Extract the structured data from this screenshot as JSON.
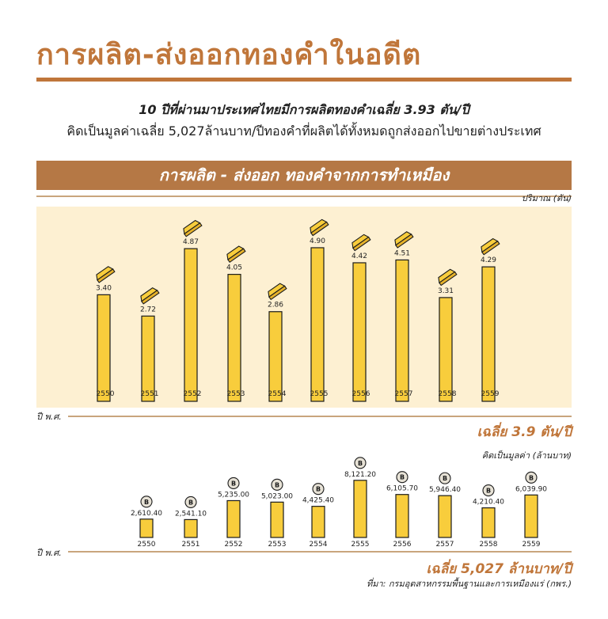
{
  "header": {
    "title": "การผลิต-ส่งออกทองคำในอดีต",
    "subtitle_line1": "10 ปีที่ผ่านมาประเทศไทยมีการผลิตทองคำเฉลี่ย 3.93 ตัน/ปี",
    "subtitle_line2": "คิดเป็นมูลค่าเฉลี่ย 5,027ล้านบาท/ปีทองคำที่ผลิตได้ทั้งหมดถูกส่งออกไปขายต่างประเทศ",
    "banner": "การผลิต - ส่งออก ทองคำจากการทำเหมือง"
  },
  "footer": {
    "source": "ที่มา: กรมอุตสาหกรรมพื้นฐานและการเหมืองแร่ (กพร.)"
  },
  "colors": {
    "accent": "#c0763a",
    "bar": "#f8cd3c",
    "panel": "#fdf0d2",
    "banner": "#b57845"
  },
  "chart_data": [
    {
      "type": "bar",
      "ylabel": "ปริมาณ (ตัน)",
      "xlabel": "ปี พ.ศ.",
      "average_label": "เฉลี่ย 3.9 ตัน/ปี",
      "marker_icon": "gold-ingot-icon",
      "categories": [
        "2550",
        "2551",
        "2552",
        "2553",
        "2554",
        "2555",
        "2556",
        "2557",
        "2558",
        "2559"
      ],
      "values": [
        3.4,
        2.72,
        4.87,
        4.05,
        2.86,
        4.9,
        4.42,
        4.51,
        3.31,
        4.29
      ],
      "value_labels": [
        "3.40",
        "2.72",
        "4.87",
        "4.05",
        "2.86",
        "4.90",
        "4.42",
        "4.51",
        "3.31",
        "4.29"
      ]
    },
    {
      "type": "bar",
      "ylabel": "คิดเป็นมูลค่า (ล้านบาท)",
      "xlabel": "ปี พ.ศ.",
      "average_label": "เฉลี่ย 5,027 ล้านบาท/ปี",
      "marker_icon": "baht-coin-icon",
      "coin_symbol": "B",
      "categories": [
        "2550",
        "2551",
        "2552",
        "2553",
        "2554",
        "2555",
        "2556",
        "2557",
        "2558",
        "2559"
      ],
      "values": [
        2610.4,
        2541.1,
        5235.0,
        5023.0,
        4425.4,
        8121.2,
        6105.7,
        5946.4,
        4210.4,
        6039.9
      ],
      "value_labels": [
        "2,610.40",
        "2,541.10",
        "5,235.00",
        "5,023.00",
        "4,425.40",
        "8,121.20",
        "6,105.70",
        "5,946.40",
        "4,210.40",
        "6,039.90"
      ]
    }
  ]
}
